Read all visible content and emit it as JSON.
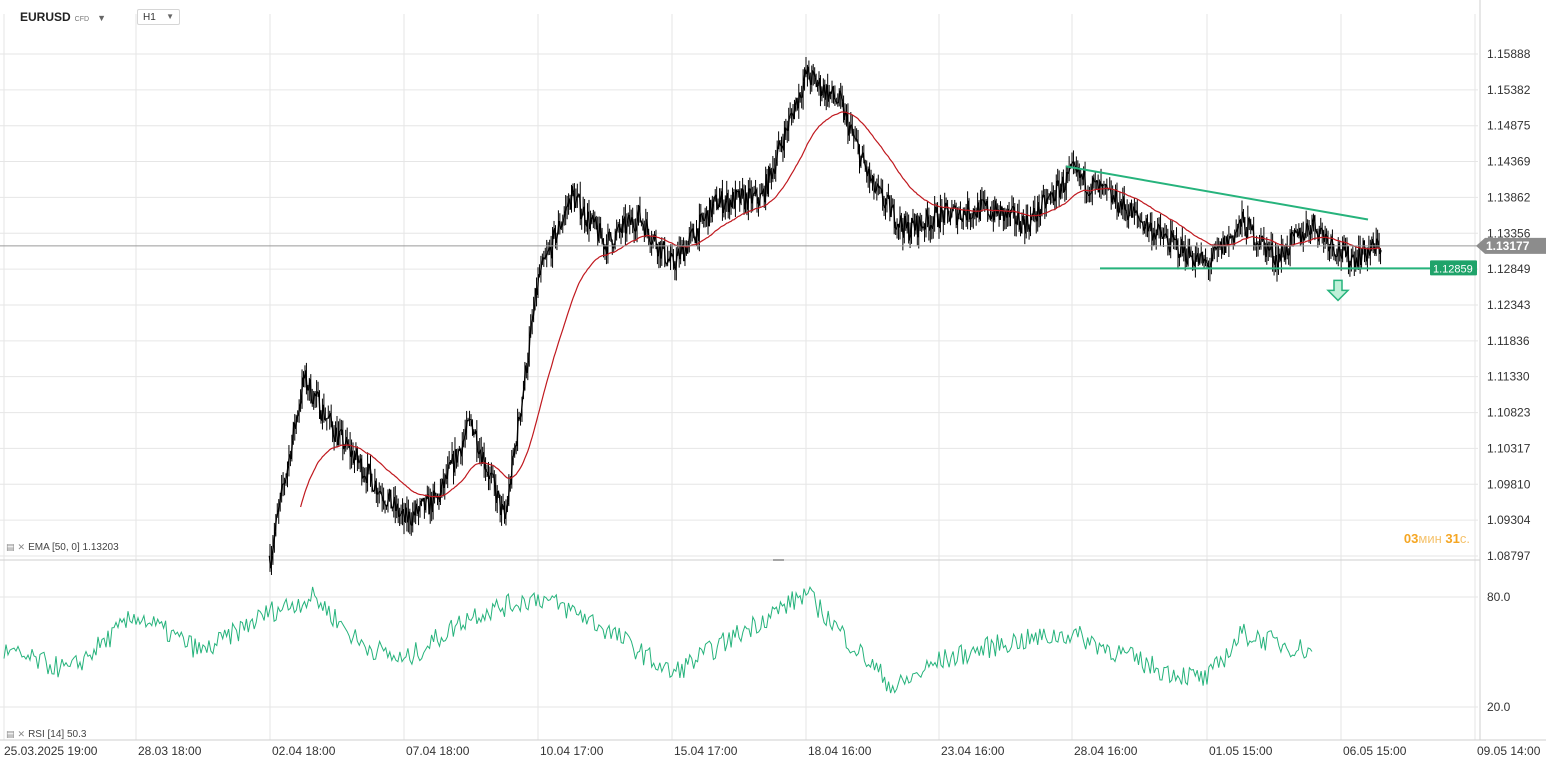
{
  "header": {
    "symbol": "EURUSD",
    "symbol_tag": "CFD",
    "timeframe": "H1"
  },
  "indicators": {
    "ema_label": "EMA [50, 0] 1.13203",
    "rsi_label": "RSI [14] 50.3"
  },
  "countdown": {
    "min_value": "03",
    "min_unit": "мин",
    "sec_value": "31",
    "sec_unit": "с."
  },
  "colors": {
    "price": "#000000",
    "ema": "#c0191f",
    "trend": "#26b37c",
    "rsi": "#26b37c",
    "grid": "#e6e6e6",
    "current_line": "#9a9a9a"
  },
  "chart_data": [
    {
      "type": "candlestick",
      "title": "",
      "xlabel": "",
      "ylabel": "",
      "ylim": [
        1.08797,
        1.15888
      ],
      "y_ticks": [
        "1.15888",
        "1.15382",
        "1.14875",
        "1.14369",
        "1.13862",
        "1.13356",
        "1.12849",
        "1.12343",
        "1.11836",
        "1.11330",
        "1.10823",
        "1.10317",
        "1.09810",
        "1.09304",
        "1.08797"
      ],
      "x_ticks": [
        "25.03.2025  19:00",
        "28.03  18:00",
        "02.04  18:00",
        "07.04  18:00",
        "10.04  17:00",
        "15.04  17:00",
        "18.04  16:00",
        "23.04  16:00",
        "28.04  16:00",
        "01.05  15:00",
        "06.05  15:00",
        "09.05  14:00"
      ],
      "grid": true,
      "current_price": "1.13177",
      "level_label": "1.12859",
      "ema_period": 50,
      "ema_last": 1.13203,
      "price_path": [
        [
          "02.04 18:00",
          1.088
        ],
        [
          "03.04",
          1.113
        ],
        [
          "04.04",
          1.105
        ],
        [
          "04.04",
          1.099
        ],
        [
          "07.04 18:00",
          1.093
        ],
        [
          "08.04",
          1.096
        ],
        [
          "09.04",
          1.107
        ],
        [
          "09.04",
          1.093
        ],
        [
          "10.04 17:00",
          1.127
        ],
        [
          "11.04",
          1.139
        ],
        [
          "11.04",
          1.132
        ],
        [
          "14.04",
          1.136
        ],
        [
          "15.04 17:00",
          1.129
        ],
        [
          "16.04",
          1.138
        ],
        [
          "17.04",
          1.1385
        ],
        [
          "18.04 16:00",
          1.156
        ],
        [
          "21.04",
          1.152
        ],
        [
          "22.04",
          1.14
        ],
        [
          "22.04",
          1.134
        ],
        [
          "23.04 16:00",
          1.136
        ],
        [
          "24.04",
          1.137
        ],
        [
          "25.04",
          1.135
        ],
        [
          "28.04 16:00",
          1.142
        ],
        [
          "29.04",
          1.138
        ],
        [
          "30.04",
          1.133
        ],
        [
          "01.05 15:00",
          1.129
        ],
        [
          "02.05",
          1.135
        ],
        [
          "02.05",
          1.13
        ],
        [
          "05.05",
          1.135
        ],
        [
          "05.05",
          1.13
        ],
        [
          "05.05",
          1.13177
        ]
      ],
      "trendlines": [
        {
          "name": "",
          "from": [
            "28.04 16:00",
            1.143
          ],
          "to": [
            "06.05",
            1.1355
          ]
        },
        {
          "name": "",
          "from": [
            "28.04 16:00",
            1.12859
          ],
          "to": [
            "09.05",
            1.12859
          ]
        }
      ]
    },
    {
      "type": "line",
      "title": "",
      "ylim": [
        12,
        92
      ],
      "y_ticks": [
        "80.0",
        "20.0"
      ],
      "last_value": 50.3,
      "rsi_path": [
        [
          "25.03.2025 19:00",
          50
        ],
        [
          "27.03",
          40
        ],
        [
          "28.03 18:00",
          70
        ],
        [
          "31.03",
          50
        ],
        [
          "02.04 18:00",
          72
        ],
        [
          "03.04",
          80
        ],
        [
          "04.04",
          55
        ],
        [
          "07.04 18:00",
          45
        ],
        [
          "09.04",
          70
        ],
        [
          "10.04 17:00",
          80
        ],
        [
          "11.04",
          70
        ],
        [
          "14.04",
          55
        ],
        [
          "15.04 17:00",
          38
        ],
        [
          "16.04",
          60
        ],
        [
          "18.04 16:00",
          82
        ],
        [
          "21.04",
          55
        ],
        [
          "22.04",
          30
        ],
        [
          "23.04 16:00",
          45
        ],
        [
          "25.04",
          55
        ],
        [
          "28.04 16:00",
          60
        ],
        [
          "29.04",
          50
        ],
        [
          "30.04",
          40
        ],
        [
          "01.05 15:00",
          35
        ],
        [
          "02.05",
          60
        ],
        [
          "05.05",
          55
        ],
        [
          "05.05",
          50.3
        ]
      ]
    }
  ]
}
